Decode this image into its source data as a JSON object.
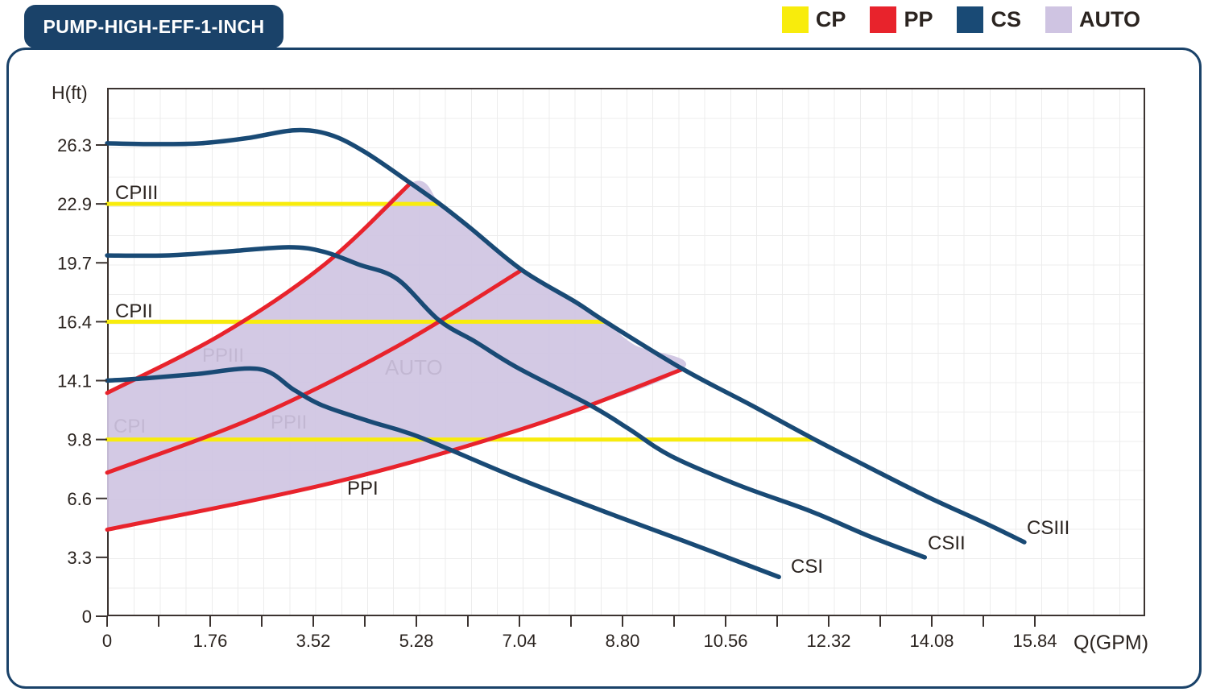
{
  "title": "PUMP-HIGH-EFF-1-INCH",
  "legend": [
    {
      "label": "CP",
      "color_key": "cp"
    },
    {
      "label": "PP",
      "color_key": "pp"
    },
    {
      "label": "CS",
      "color_key": "cs"
    },
    {
      "label": "AUTO",
      "color_key": "auto"
    }
  ],
  "colors": {
    "cp": "#f8ec0c",
    "pp": "#e8232c",
    "cs": "#194a75",
    "auto": "#cfc4e2",
    "frame": "#1a4269",
    "grid": "#ececec",
    "axis": "#3b3330",
    "text": "#2b2420"
  },
  "chart_data": {
    "type": "line",
    "title": "PUMP-HIGH-EFF-1-INCH",
    "x_axis": {
      "label": "Q(GPM)",
      "ticks": [
        "0",
        "1.76",
        "3.52",
        "5.28",
        "7.04",
        "8.80",
        "10.56",
        "12.32",
        "14.08",
        "15.84"
      ],
      "minor_ticks_between_majors": true
    },
    "y_axis": {
      "label": "H(ft)",
      "ticks": [
        "0",
        "3.3",
        "6.6",
        "9.8",
        "14.1",
        "16.4",
        "19.7",
        "22.9",
        "26.3"
      ]
    },
    "grid": "on",
    "legend_position": "top-right",
    "series": [
      {
        "name": "CSIII",
        "group": "CS",
        "color": "cs",
        "points": [
          [
            0,
            26.4
          ],
          [
            0.8,
            26.35
          ],
          [
            1.6,
            26.4
          ],
          [
            2.4,
            26.7
          ],
          [
            3.2,
            27.15
          ],
          [
            3.8,
            26.9
          ],
          [
            4.4,
            25.9
          ],
          [
            5.18,
            24.1
          ],
          [
            5.7,
            22.85
          ],
          [
            6.2,
            21.6
          ],
          [
            7.08,
            19.3
          ],
          [
            8.0,
            17.5
          ],
          [
            8.51,
            16.4
          ],
          [
            9.83,
            14.55
          ],
          [
            11,
            12.3
          ],
          [
            12.06,
            9.85
          ],
          [
            13,
            8.3
          ],
          [
            14,
            6.7
          ],
          [
            15,
            5.2
          ],
          [
            15.66,
            4.15
          ]
        ]
      },
      {
        "name": "CSII",
        "group": "CS",
        "color": "cs",
        "points": [
          [
            0,
            20.1
          ],
          [
            1,
            20.1
          ],
          [
            2,
            20.3
          ],
          [
            3.1,
            20.55
          ],
          [
            3.7,
            20.3
          ],
          [
            4.3,
            19.6
          ],
          [
            4.95,
            18.8
          ],
          [
            5.66,
            16.5
          ],
          [
            6.3,
            15.6
          ],
          [
            7.01,
            14.6
          ],
          [
            8.25,
            12.3
          ],
          [
            8.9,
            10.6
          ],
          [
            9.63,
            8.9
          ],
          [
            10.8,
            7.3
          ],
          [
            12,
            5.9
          ],
          [
            13,
            4.5
          ],
          [
            13.96,
            3.3
          ]
        ]
      },
      {
        "name": "CSI",
        "group": "CS",
        "color": "cs",
        "points": [
          [
            0,
            14.1
          ],
          [
            0.7,
            14.2
          ],
          [
            1.5,
            14.35
          ],
          [
            2.6,
            14.55
          ],
          [
            3.2,
            13.4
          ],
          [
            3.67,
            12.3
          ],
          [
            4.5,
            11.1
          ],
          [
            5.32,
            10.0
          ],
          [
            6.97,
            7.75
          ],
          [
            8.5,
            5.85
          ],
          [
            9.86,
            4.2
          ],
          [
            11.47,
            2.2
          ]
        ]
      },
      {
        "name": "PPIII",
        "group": "PP",
        "color": "pp",
        "points": [
          [
            0,
            13.2
          ],
          [
            1.95,
            15.9
          ],
          [
            3.71,
            19.6
          ],
          [
            5.18,
            24.1
          ]
        ]
      },
      {
        "name": "PPII",
        "group": "PP",
        "color": "pp",
        "points": [
          [
            0,
            8.0
          ],
          [
            2.51,
            11.4
          ],
          [
            4.92,
            15.4
          ],
          [
            7.08,
            19.3
          ]
        ]
      },
      {
        "name": "PPI",
        "group": "PP",
        "color": "pp",
        "points": [
          [
            0,
            4.85
          ],
          [
            3.91,
            7.5
          ],
          [
            7.25,
            10.8
          ],
          [
            9.83,
            14.55
          ]
        ]
      },
      {
        "name": "CPIII",
        "group": "CP",
        "color": "cp",
        "points": [
          [
            0,
            22.9
          ],
          [
            5.66,
            22.9
          ]
        ]
      },
      {
        "name": "CPII",
        "group": "CP",
        "color": "cp",
        "points": [
          [
            0,
            16.4
          ],
          [
            8.51,
            16.4
          ]
        ]
      },
      {
        "name": "CPI",
        "group": "CP",
        "color": "cp",
        "points": [
          [
            0,
            9.8
          ],
          [
            12.06,
            9.8
          ]
        ]
      }
    ],
    "auto_region": {
      "name": "AUTO",
      "color": "auto",
      "points": [
        [
          0,
          13.2
        ],
        [
          1.95,
          15.9
        ],
        [
          3.71,
          19.6
        ],
        [
          5.18,
          24.1
        ],
        [
          5.7,
          22.85
        ],
        [
          6.2,
          21.6
        ],
        [
          7.08,
          19.3
        ],
        [
          8.0,
          17.5
        ],
        [
          8.51,
          16.4
        ],
        [
          9.0,
          15.5
        ],
        [
          9.83,
          14.55
        ],
        [
          7.25,
          10.8
        ],
        [
          3.91,
          7.5
        ],
        [
          0,
          4.85
        ]
      ]
    },
    "curve_labels": [
      {
        "text": "CPIII"
      },
      {
        "text": "CPII"
      },
      {
        "text": "CPI"
      },
      {
        "text": "PPIII"
      },
      {
        "text": "PPII"
      },
      {
        "text": "PPI"
      },
      {
        "text": "AUTO"
      },
      {
        "text": "CSI"
      },
      {
        "text": "CSII"
      },
      {
        "text": "CSIII"
      }
    ]
  }
}
